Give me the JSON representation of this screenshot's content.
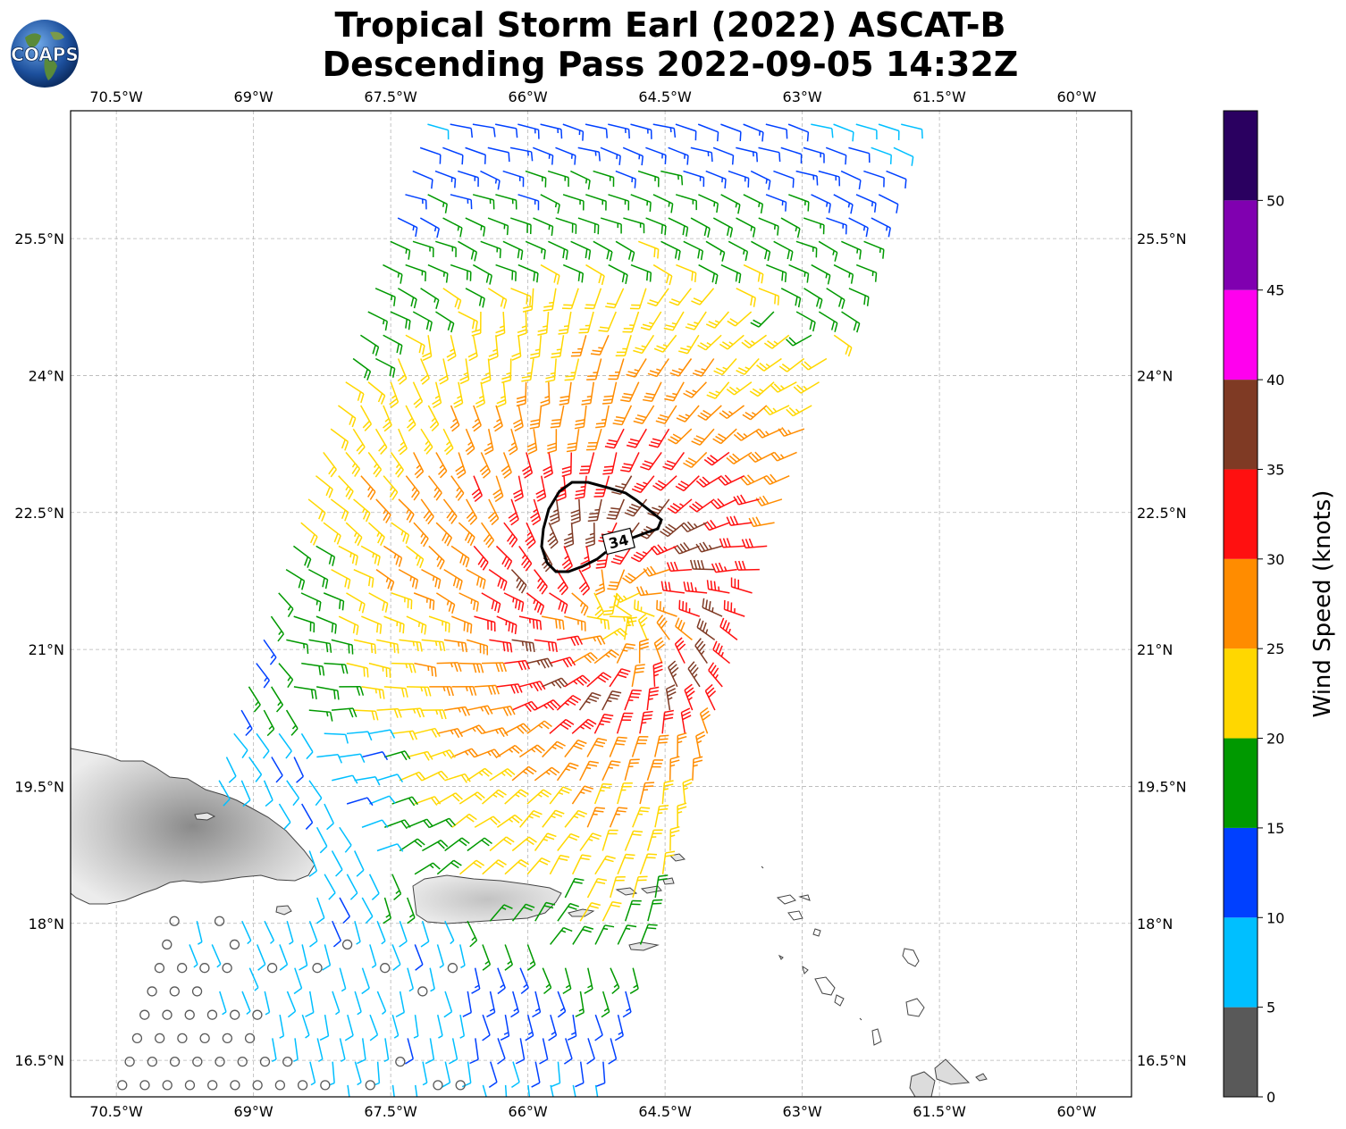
{
  "title": {
    "line1": "Tropical Storm Earl (2022) ASCAT-B",
    "line2": "Descending Pass 2022-09-05 14:32Z"
  },
  "logo_text": "COAPS",
  "map": {
    "lon_labels": [
      "70.5°W",
      "69°W",
      "67.5°W",
      "66°W",
      "64.5°W",
      "63°W",
      "61.5°W",
      "60°W"
    ],
    "lat_labels": [
      "25.5°N",
      "24°N",
      "22.5°N",
      "21°N",
      "19.5°N",
      "18°N",
      "16.5°N"
    ],
    "lon_values": [
      -70.5,
      -69,
      -67.5,
      -66,
      -64.5,
      -63,
      -61.5,
      -60
    ],
    "lat_values": [
      25.5,
      24,
      22.5,
      21,
      19.5,
      18,
      16.5
    ],
    "extent": {
      "lon_min": -71.0,
      "lon_max": -59.4,
      "lat_min": 16.1,
      "lat_max": 26.9
    },
    "gridlines": true,
    "contour_label": "34",
    "contour_value_knots": 34,
    "storm_center": {
      "lon": -65.0,
      "lat": 21.4
    }
  },
  "colorbar": {
    "title": "Wind Speed (knots)",
    "tick_labels": [
      "0",
      "5",
      "10",
      "15",
      "20",
      "25",
      "30",
      "35",
      "40",
      "45",
      "50"
    ],
    "bins": [
      {
        "min": 0,
        "max": 5,
        "color": "#595959"
      },
      {
        "min": 5,
        "max": 10,
        "color": "#00bfff"
      },
      {
        "min": 10,
        "max": 15,
        "color": "#0040ff"
      },
      {
        "min": 15,
        "max": 20,
        "color": "#009900"
      },
      {
        "min": 20,
        "max": 25,
        "color": "#ffd700"
      },
      {
        "min": 25,
        "max": 30,
        "color": "#ff8c00"
      },
      {
        "min": 30,
        "max": 35,
        "color": "#ff1010"
      },
      {
        "min": 35,
        "max": 40,
        "color": "#7f3a24"
      },
      {
        "min": 40,
        "max": 45,
        "color": "#ff00ee"
      },
      {
        "min": 45,
        "max": 50,
        "color": "#8000b0"
      },
      {
        "min": 50,
        "max": 55,
        "color": "#2a0060"
      }
    ]
  }
}
